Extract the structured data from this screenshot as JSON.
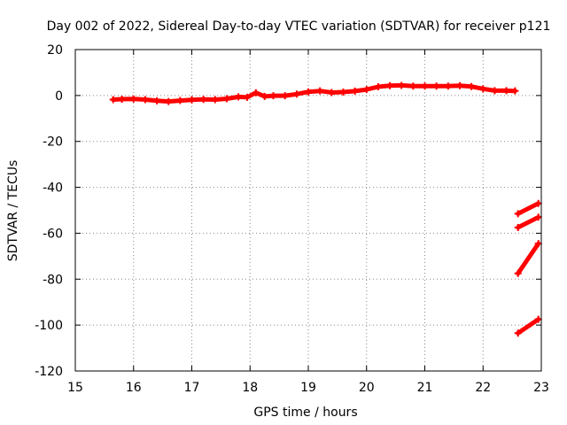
{
  "chart_data": {
    "type": "scatter",
    "title": "Day 002 of 2022, Sidereal Day-to-day VTEC variation (SDTVAR) for receiver p121",
    "xlabel": "GPS time / hours",
    "ylabel": "SDTVAR / TECUs",
    "xlim": [
      15,
      23
    ],
    "ylim": [
      -120,
      20
    ],
    "x_ticks": [
      15,
      16,
      17,
      18,
      19,
      20,
      21,
      22,
      23
    ],
    "y_ticks": [
      -120,
      -100,
      -80,
      -60,
      -40,
      -20,
      0,
      20
    ],
    "grid": true,
    "series": [
      {
        "name": "main-track",
        "color": "#ff0000",
        "points": [
          [
            15.65,
            -1.8
          ],
          [
            15.8,
            -1.6
          ],
          [
            16.0,
            -1.5
          ],
          [
            16.2,
            -1.8
          ],
          [
            16.4,
            -2.3
          ],
          [
            16.6,
            -2.6
          ],
          [
            16.8,
            -2.2
          ],
          [
            17.0,
            -1.9
          ],
          [
            17.2,
            -1.7
          ],
          [
            17.4,
            -1.8
          ],
          [
            17.6,
            -1.4
          ],
          [
            17.8,
            -0.6
          ],
          [
            17.95,
            -0.8
          ],
          [
            18.1,
            1.2
          ],
          [
            18.25,
            -0.4
          ],
          [
            18.4,
            -0.1
          ],
          [
            18.6,
            -0.1
          ],
          [
            18.8,
            0.6
          ],
          [
            19.0,
            1.6
          ],
          [
            19.2,
            2.0
          ],
          [
            19.4,
            1.3
          ],
          [
            19.6,
            1.5
          ],
          [
            19.8,
            1.9
          ],
          [
            20.0,
            2.6
          ],
          [
            20.2,
            3.8
          ],
          [
            20.4,
            4.3
          ],
          [
            20.6,
            4.4
          ],
          [
            20.8,
            4.1
          ],
          [
            21.0,
            4.1
          ],
          [
            21.2,
            4.1
          ],
          [
            21.4,
            4.1
          ],
          [
            21.6,
            4.3
          ],
          [
            21.8,
            3.9
          ],
          [
            22.0,
            2.9
          ],
          [
            22.2,
            2.1
          ],
          [
            22.4,
            2.1
          ],
          [
            22.55,
            2.0
          ]
        ]
      },
      {
        "name": "segment-1",
        "color": "#ff0000",
        "points": [
          [
            22.6,
            -51.5
          ],
          [
            22.95,
            -47.0
          ]
        ]
      },
      {
        "name": "segment-2",
        "color": "#ff0000",
        "points": [
          [
            22.6,
            -57.5
          ],
          [
            22.95,
            -53.0
          ]
        ]
      },
      {
        "name": "segment-3",
        "color": "#ff0000",
        "points": [
          [
            22.6,
            -77.5
          ],
          [
            22.95,
            -64.5
          ]
        ]
      },
      {
        "name": "segment-4",
        "color": "#ff0000",
        "points": [
          [
            22.6,
            -103.5
          ],
          [
            22.95,
            -97.5
          ]
        ]
      }
    ]
  }
}
